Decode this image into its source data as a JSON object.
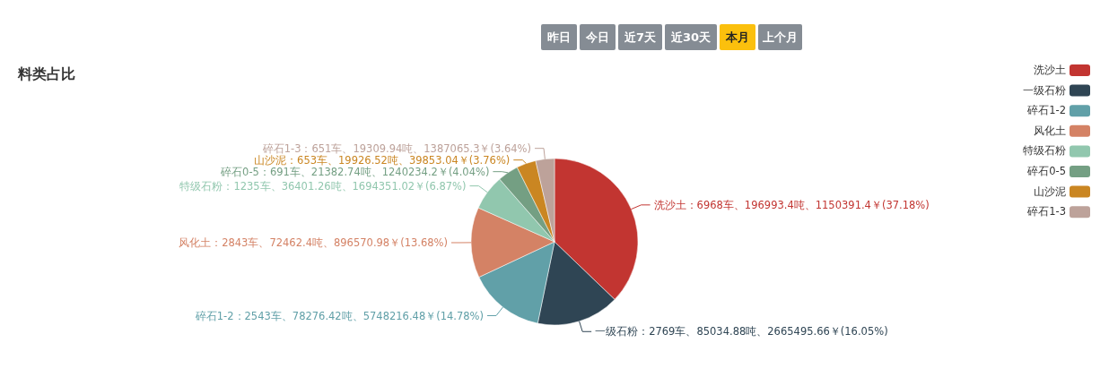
{
  "chart_data": {
    "type": "pie",
    "title": "料类占比",
    "legend": "top right",
    "categories": [
      "洗沙土",
      "一级石粉",
      "碎石1-2",
      "风化土",
      "特级石粉",
      "碎石0-5",
      "山沙泥",
      "碎石1-3"
    ],
    "values": [
      37.18,
      16.05,
      14.78,
      13.68,
      6.87,
      4.04,
      3.76,
      3.64
    ],
    "colors": [
      "#c23531",
      "#2f4554",
      "#61a0a8",
      "#d48265",
      "#91c7ae",
      "#749f83",
      "#ca8622",
      "#bda29a"
    ],
    "value_labels": [
      "洗沙土：6968车、196993.4吨、1150391.4￥(37.18%)",
      "一级石粉：2769车、85034.88吨、2665495.66￥(16.05%)",
      "碎石1-2：2543车、78276.42吨、5748216.48￥(14.78%)",
      "风化土：2843车、72462.4吨、896570.98￥(13.68%)",
      "特级石粉：1235车、36401.26吨、1694351.02￥(6.87%)",
      "碎石0-5：691车、21382.74吨、1240234.2￥(4.04%)",
      "山沙泥：653车、19926.52吨、39853.04￥(3.76%)",
      "碎石1-3：651车、19309.94吨、1387065.3￥(3.64%)"
    ],
    "annotations": [
      "昨日",
      "今日",
      "近7天",
      "近30天",
      "本月",
      "上个月"
    ]
  }
}
